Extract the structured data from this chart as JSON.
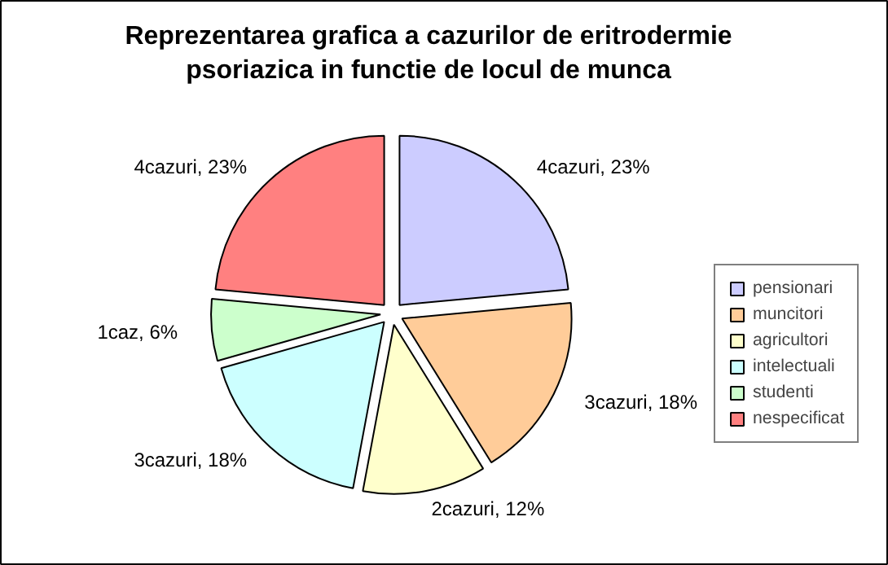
{
  "chart_data": {
    "type": "pie",
    "title": "Reprezentarea grafica a cazurilor de eritrodermie\npsoriazica in functie de locul de munca",
    "categories": [
      "pensionari",
      "muncitori",
      "agricultori",
      "intelectuali",
      "studenti",
      "nespecificat"
    ],
    "values": [
      4,
      3,
      2,
      3,
      1,
      4
    ],
    "value_labels": [
      "4cazuri, 23%",
      "3cazuri, 18%",
      "2cazuri, 12%",
      "3cazuri, 18%",
      "1caz, 6%",
      "4cazuri, 23%"
    ],
    "colors": [
      "#ccccff",
      "#ffcc99",
      "#ffffcc",
      "#ccffff",
      "#ccffcc",
      "#ff8080"
    ],
    "legend": "right"
  }
}
